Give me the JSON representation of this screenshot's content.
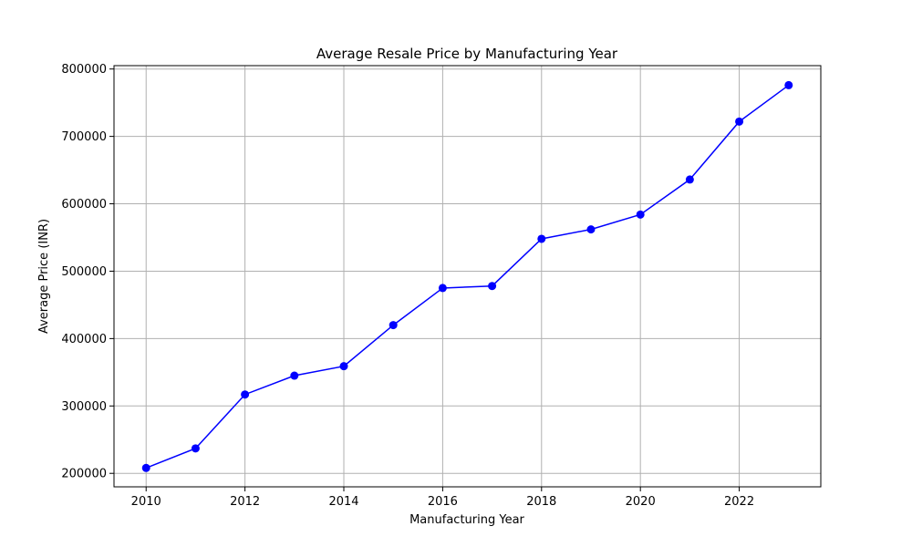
{
  "chart_data": {
    "type": "line",
    "title": "Average Resale Price by Manufacturing Year",
    "xlabel": "Manufacturing Year",
    "ylabel": "Average Price (INR)",
    "xlim": [
      2009.35,
      2023.65
    ],
    "ylim": [
      180000,
      805000
    ],
    "xticks": [
      2010,
      2012,
      2014,
      2016,
      2018,
      2020,
      2022
    ],
    "yticks": [
      200000,
      300000,
      400000,
      500000,
      600000,
      700000,
      800000
    ],
    "grid": true,
    "line_color": "#0000ff",
    "marker_color": "#0000ff",
    "series": [
      {
        "x": [
          2010,
          2011,
          2012,
          2013,
          2014,
          2015,
          2016,
          2017,
          2018,
          2019,
          2020,
          2021,
          2022,
          2023
        ],
        "values": [
          208000,
          237000,
          317000,
          345000,
          359000,
          420000,
          475000,
          478000,
          548000,
          562000,
          584000,
          636000,
          722000,
          776000
        ]
      }
    ]
  }
}
